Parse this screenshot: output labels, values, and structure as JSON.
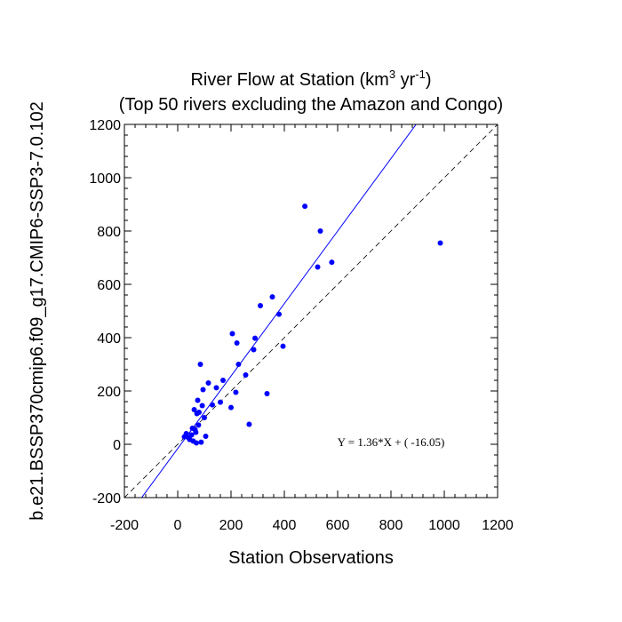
{
  "chart_data": {
    "type": "scatter",
    "title_main": "River Flow at Station (km",
    "title_sup1": "3",
    "title_mid": " yr",
    "title_sup2": "-1",
    "title_end": ")",
    "subtitle": "(Top 50 rivers excluding the Amazon and Congo)",
    "xlabel": "Station Observations",
    "ylabel": "b.e21.BSSP370cmip6.f09_g17.CMIP6-SSP3-7.0.102",
    "xlim": [
      -200,
      1200
    ],
    "ylim": [
      -200,
      1200
    ],
    "xticks": [
      "-200",
      "0",
      "200",
      "400",
      "600",
      "800",
      "1000",
      "1200"
    ],
    "yticks": [
      "-200",
      "0",
      "200",
      "400",
      "600",
      "800",
      "1000",
      "1200"
    ],
    "regression": {
      "slope": 1.36,
      "intercept": -16.05,
      "label": "Y =  1.36*X + (  -16.05)"
    },
    "reference_line": "1:1",
    "point_color": "#0000ff",
    "line_color": "#0000ff",
    "points": [
      {
        "x": 25,
        "y": 28
      },
      {
        "x": 32,
        "y": 40
      },
      {
        "x": 40,
        "y": 25
      },
      {
        "x": 45,
        "y": 18
      },
      {
        "x": 52,
        "y": 35
      },
      {
        "x": 55,
        "y": 60
      },
      {
        "x": 58,
        "y": 12
      },
      {
        "x": 62,
        "y": 130
      },
      {
        "x": 65,
        "y": 55
      },
      {
        "x": 68,
        "y": 45
      },
      {
        "x": 70,
        "y": 5
      },
      {
        "x": 72,
        "y": 115
      },
      {
        "x": 75,
        "y": 165
      },
      {
        "x": 78,
        "y": 72
      },
      {
        "x": 80,
        "y": 120
      },
      {
        "x": 85,
        "y": 300
      },
      {
        "x": 88,
        "y": 8
      },
      {
        "x": 92,
        "y": 145
      },
      {
        "x": 95,
        "y": 205
      },
      {
        "x": 100,
        "y": 100
      },
      {
        "x": 105,
        "y": 30
      },
      {
        "x": 115,
        "y": 230
      },
      {
        "x": 130,
        "y": 148
      },
      {
        "x": 145,
        "y": 212
      },
      {
        "x": 160,
        "y": 158
      },
      {
        "x": 170,
        "y": 240
      },
      {
        "x": 200,
        "y": 138
      },
      {
        "x": 205,
        "y": 415
      },
      {
        "x": 218,
        "y": 195
      },
      {
        "x": 222,
        "y": 380
      },
      {
        "x": 228,
        "y": 300
      },
      {
        "x": 255,
        "y": 260
      },
      {
        "x": 268,
        "y": 75
      },
      {
        "x": 285,
        "y": 355
      },
      {
        "x": 290,
        "y": 398
      },
      {
        "x": 310,
        "y": 520
      },
      {
        "x": 335,
        "y": 190
      },
      {
        "x": 355,
        "y": 553
      },
      {
        "x": 380,
        "y": 488
      },
      {
        "x": 395,
        "y": 368
      },
      {
        "x": 477,
        "y": 893
      },
      {
        "x": 525,
        "y": 665
      },
      {
        "x": 535,
        "y": 800
      },
      {
        "x": 578,
        "y": 683
      },
      {
        "x": 985,
        "y": 755
      }
    ]
  }
}
